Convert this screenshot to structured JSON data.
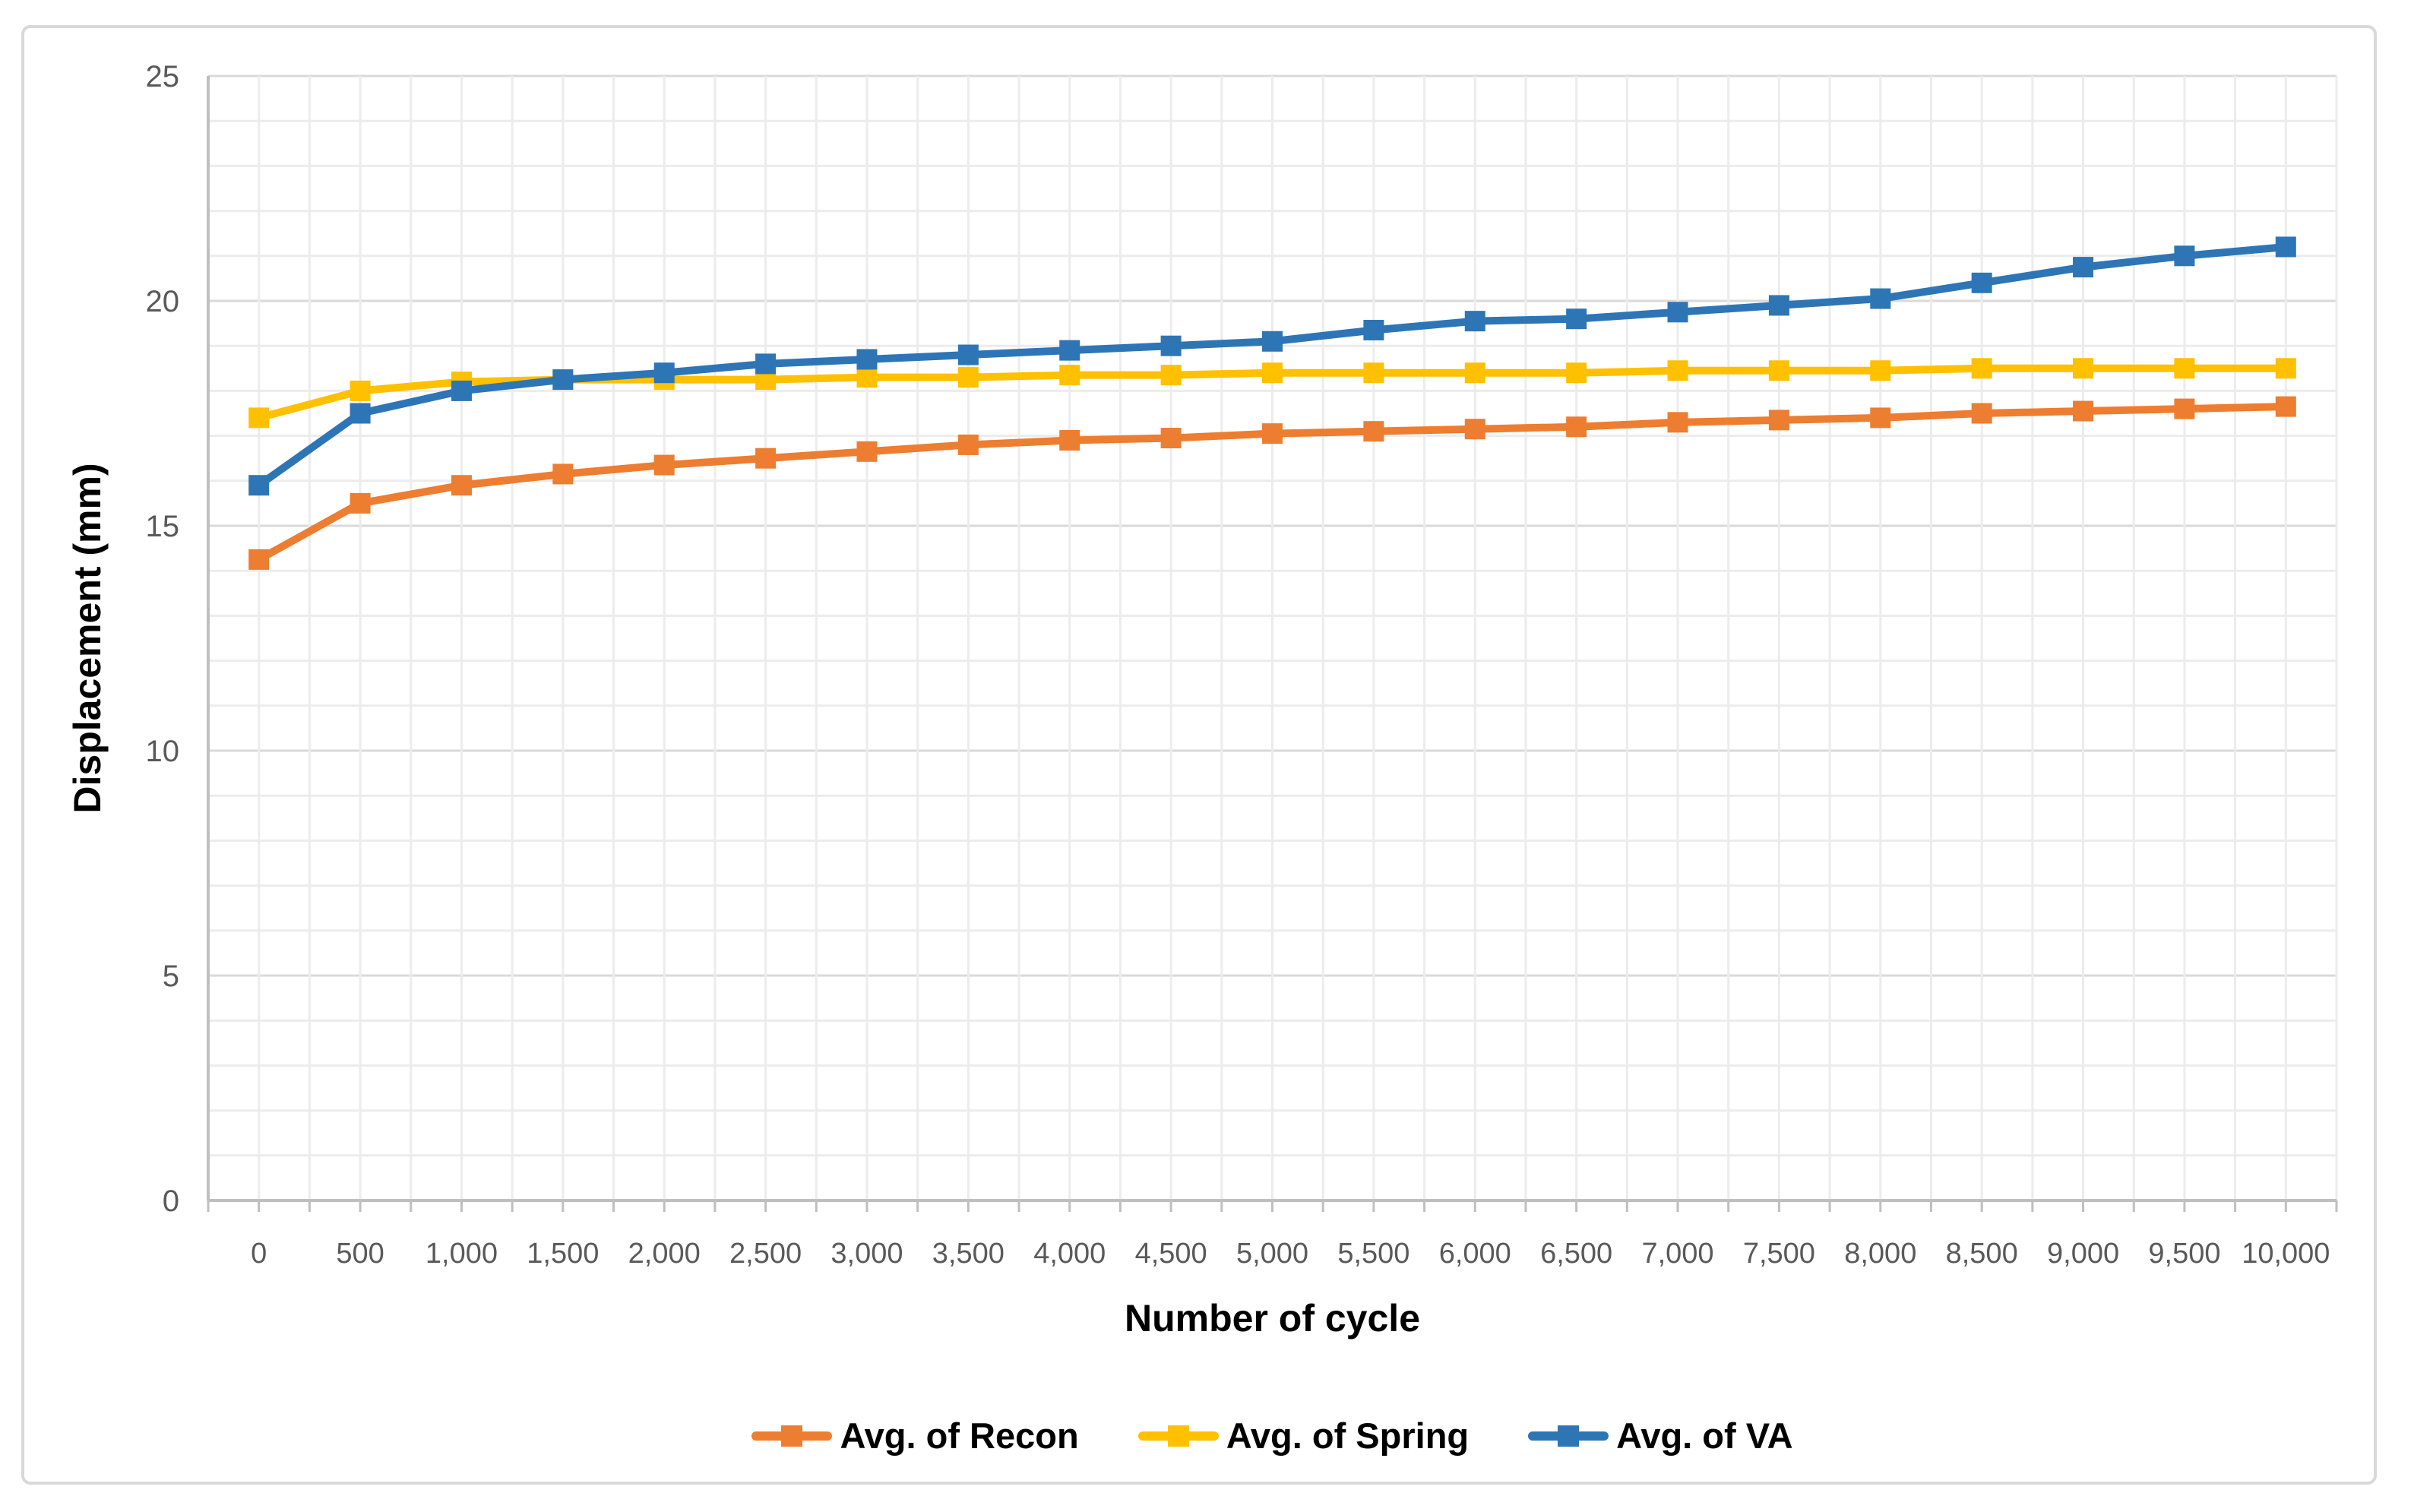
{
  "chart_data": {
    "type": "line",
    "title": "",
    "xlabel": "Number of cycle",
    "ylabel": "Displacement (mm)",
    "ylim": [
      0,
      25
    ],
    "xlim": [
      0,
      10000
    ],
    "y_ticks": [
      "0",
      "5",
      "10",
      "15",
      "20",
      "25"
    ],
    "y_tick_values": [
      0,
      5,
      10,
      15,
      20,
      25
    ],
    "x_tick_labels": [
      "0",
      "500",
      "1,000",
      "1,500",
      "2,000",
      "2,500",
      "3,000",
      "3,500",
      "4,000",
      "4,500",
      "5,000",
      "5,500",
      "6,000",
      "6,500",
      "7,000",
      "7,500",
      "8,000",
      "8,500",
      "9,000",
      "9,500",
      "10,000"
    ],
    "categories": [
      0,
      500,
      1000,
      1500,
      2000,
      2500,
      3000,
      3500,
      4000,
      4500,
      5000,
      5500,
      6000,
      6500,
      7000,
      7500,
      8000,
      8500,
      9000,
      9500,
      10000
    ],
    "grid": {
      "horizontal_minor_step_mm": 1,
      "vertical_minor_step_cycles": 250,
      "major_every_mm": 5
    },
    "legend_position": "bottom",
    "marker": "square",
    "series": [
      {
        "name": "Avg. of Recon",
        "color": "#ED7D31",
        "values": [
          14.25,
          15.5,
          15.9,
          16.15,
          16.35,
          16.5,
          16.65,
          16.8,
          16.9,
          16.95,
          17.05,
          17.1,
          17.15,
          17.2,
          17.3,
          17.35,
          17.4,
          17.5,
          17.55,
          17.6,
          17.65
        ]
      },
      {
        "name": "Avg. of Spring",
        "color": "#FFC000",
        "values": [
          17.4,
          18.0,
          18.2,
          18.25,
          18.25,
          18.25,
          18.3,
          18.3,
          18.35,
          18.35,
          18.4,
          18.4,
          18.4,
          18.4,
          18.45,
          18.45,
          18.45,
          18.5,
          18.5,
          18.5,
          18.5
        ]
      },
      {
        "name": "Avg. of VA",
        "color": "#2E75B6",
        "values": [
          15.9,
          17.5,
          18.0,
          18.25,
          18.4,
          18.6,
          18.7,
          18.8,
          18.9,
          19.0,
          19.1,
          19.35,
          19.55,
          19.6,
          19.75,
          19.9,
          20.05,
          20.4,
          20.75,
          21.0,
          21.2
        ]
      }
    ],
    "colors": {
      "tick_label": "#595959",
      "axis_line": "#BFBFBF",
      "grid_minor": "#ECECEC",
      "grid_major": "#D9D9D9",
      "frame_border": "#D9D9D9",
      "title_text": "#000000"
    }
  }
}
